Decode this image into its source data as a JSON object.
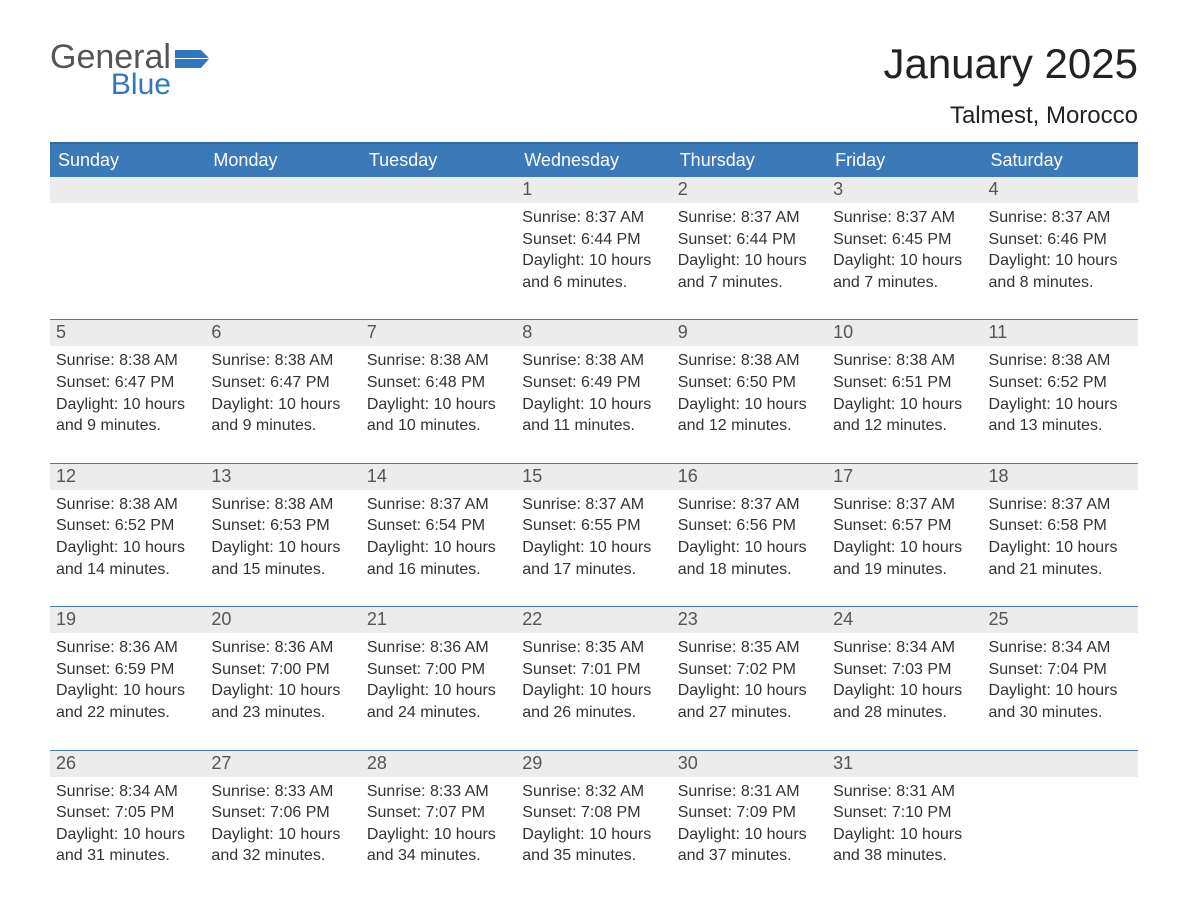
{
  "logo": {
    "word1": "General",
    "word2": "Blue"
  },
  "title": "January 2025",
  "location": "Talmest, Morocco",
  "colors": {
    "header_bg": "#3a7ab8",
    "header_text": "#ffffff",
    "daynum_bg": "#ececec",
    "daynum_text": "#555555",
    "body_text": "#333333",
    "rule": "#3a7ab8",
    "logo_gray": "#555555",
    "logo_blue": "#2f78bf"
  },
  "day_headers": [
    "Sunday",
    "Monday",
    "Tuesday",
    "Wednesday",
    "Thursday",
    "Friday",
    "Saturday"
  ],
  "weeks": [
    {
      "nums": [
        "",
        "",
        "",
        "1",
        "2",
        "3",
        "4"
      ],
      "cells": [
        [],
        [],
        [],
        [
          "Sunrise: 8:37 AM",
          "Sunset: 6:44 PM",
          "Daylight: 10 hours",
          "and 6 minutes."
        ],
        [
          "Sunrise: 8:37 AM",
          "Sunset: 6:44 PM",
          "Daylight: 10 hours",
          "and 7 minutes."
        ],
        [
          "Sunrise: 8:37 AM",
          "Sunset: 6:45 PM",
          "Daylight: 10 hours",
          "and 7 minutes."
        ],
        [
          "Sunrise: 8:37 AM",
          "Sunset: 6:46 PM",
          "Daylight: 10 hours",
          "and 8 minutes."
        ]
      ]
    },
    {
      "nums": [
        "5",
        "6",
        "7",
        "8",
        "9",
        "10",
        "11"
      ],
      "cells": [
        [
          "Sunrise: 8:38 AM",
          "Sunset: 6:47 PM",
          "Daylight: 10 hours",
          "and 9 minutes."
        ],
        [
          "Sunrise: 8:38 AM",
          "Sunset: 6:47 PM",
          "Daylight: 10 hours",
          "and 9 minutes."
        ],
        [
          "Sunrise: 8:38 AM",
          "Sunset: 6:48 PM",
          "Daylight: 10 hours",
          "and 10 minutes."
        ],
        [
          "Sunrise: 8:38 AM",
          "Sunset: 6:49 PM",
          "Daylight: 10 hours",
          "and 11 minutes."
        ],
        [
          "Sunrise: 8:38 AM",
          "Sunset: 6:50 PM",
          "Daylight: 10 hours",
          "and 12 minutes."
        ],
        [
          "Sunrise: 8:38 AM",
          "Sunset: 6:51 PM",
          "Daylight: 10 hours",
          "and 12 minutes."
        ],
        [
          "Sunrise: 8:38 AM",
          "Sunset: 6:52 PM",
          "Daylight: 10 hours",
          "and 13 minutes."
        ]
      ]
    },
    {
      "nums": [
        "12",
        "13",
        "14",
        "15",
        "16",
        "17",
        "18"
      ],
      "cells": [
        [
          "Sunrise: 8:38 AM",
          "Sunset: 6:52 PM",
          "Daylight: 10 hours",
          "and 14 minutes."
        ],
        [
          "Sunrise: 8:38 AM",
          "Sunset: 6:53 PM",
          "Daylight: 10 hours",
          "and 15 minutes."
        ],
        [
          "Sunrise: 8:37 AM",
          "Sunset: 6:54 PM",
          "Daylight: 10 hours",
          "and 16 minutes."
        ],
        [
          "Sunrise: 8:37 AM",
          "Sunset: 6:55 PM",
          "Daylight: 10 hours",
          "and 17 minutes."
        ],
        [
          "Sunrise: 8:37 AM",
          "Sunset: 6:56 PM",
          "Daylight: 10 hours",
          "and 18 minutes."
        ],
        [
          "Sunrise: 8:37 AM",
          "Sunset: 6:57 PM",
          "Daylight: 10 hours",
          "and 19 minutes."
        ],
        [
          "Sunrise: 8:37 AM",
          "Sunset: 6:58 PM",
          "Daylight: 10 hours",
          "and 21 minutes."
        ]
      ]
    },
    {
      "nums": [
        "19",
        "20",
        "21",
        "22",
        "23",
        "24",
        "25"
      ],
      "cells": [
        [
          "Sunrise: 8:36 AM",
          "Sunset: 6:59 PM",
          "Daylight: 10 hours",
          "and 22 minutes."
        ],
        [
          "Sunrise: 8:36 AM",
          "Sunset: 7:00 PM",
          "Daylight: 10 hours",
          "and 23 minutes."
        ],
        [
          "Sunrise: 8:36 AM",
          "Sunset: 7:00 PM",
          "Daylight: 10 hours",
          "and 24 minutes."
        ],
        [
          "Sunrise: 8:35 AM",
          "Sunset: 7:01 PM",
          "Daylight: 10 hours",
          "and 26 minutes."
        ],
        [
          "Sunrise: 8:35 AM",
          "Sunset: 7:02 PM",
          "Daylight: 10 hours",
          "and 27 minutes."
        ],
        [
          "Sunrise: 8:34 AM",
          "Sunset: 7:03 PM",
          "Daylight: 10 hours",
          "and 28 minutes."
        ],
        [
          "Sunrise: 8:34 AM",
          "Sunset: 7:04 PM",
          "Daylight: 10 hours",
          "and 30 minutes."
        ]
      ]
    },
    {
      "nums": [
        "26",
        "27",
        "28",
        "29",
        "30",
        "31",
        ""
      ],
      "cells": [
        [
          "Sunrise: 8:34 AM",
          "Sunset: 7:05 PM",
          "Daylight: 10 hours",
          "and 31 minutes."
        ],
        [
          "Sunrise: 8:33 AM",
          "Sunset: 7:06 PM",
          "Daylight: 10 hours",
          "and 32 minutes."
        ],
        [
          "Sunrise: 8:33 AM",
          "Sunset: 7:07 PM",
          "Daylight: 10 hours",
          "and 34 minutes."
        ],
        [
          "Sunrise: 8:32 AM",
          "Sunset: 7:08 PM",
          "Daylight: 10 hours",
          "and 35 minutes."
        ],
        [
          "Sunrise: 8:31 AM",
          "Sunset: 7:09 PM",
          "Daylight: 10 hours",
          "and 37 minutes."
        ],
        [
          "Sunrise: 8:31 AM",
          "Sunset: 7:10 PM",
          "Daylight: 10 hours",
          "and 38 minutes."
        ],
        []
      ]
    }
  ]
}
